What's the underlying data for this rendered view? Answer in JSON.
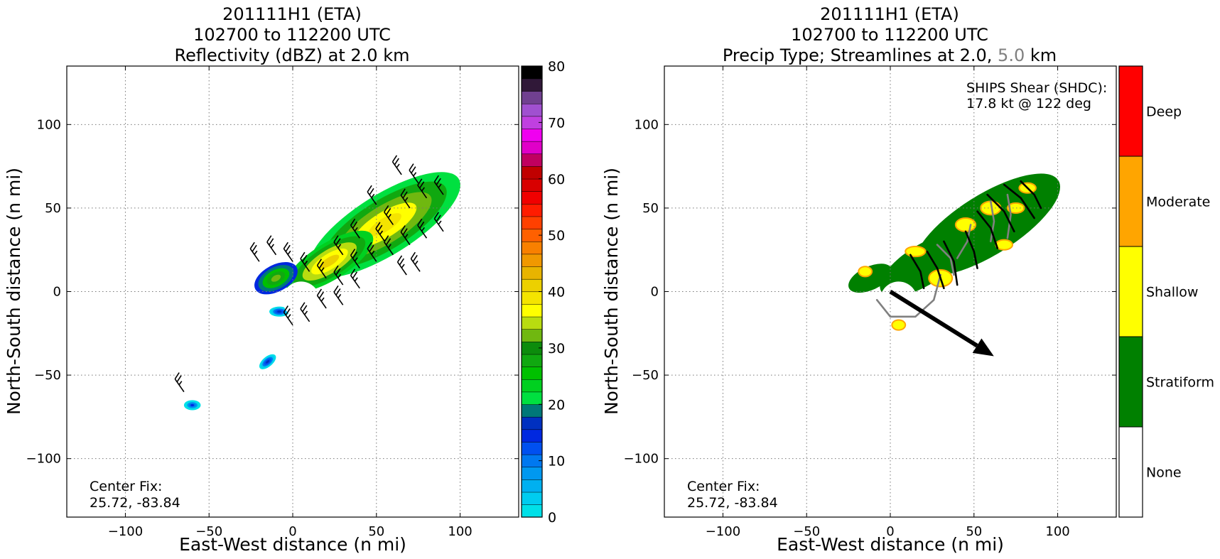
{
  "chart_data": [
    {
      "type": "heatmap",
      "title_lines": [
        "201111H1 (ETA)",
        "102700 to 112200 UTC",
        "Reflectivity (dBZ) at 2.0 km"
      ],
      "xlabel": "East-West distance (n mi)",
      "ylabel": "North-South distance (n mi)",
      "xlim": [
        -135,
        135
      ],
      "ylim": [
        -135,
        135
      ],
      "xticks": [
        -100,
        -50,
        0,
        50,
        100
      ],
      "yticks": [
        -100,
        -50,
        0,
        50,
        100
      ],
      "xtick_labels": [
        "−100",
        "−50",
        "0",
        "50",
        "100"
      ],
      "ytick_labels": [
        "−100",
        "−50",
        "0",
        "50",
        "100"
      ],
      "grid": true,
      "annotation_lines": [
        "Center Fix:",
        "25.72, -83.84"
      ],
      "colorbar": {
        "min": 0,
        "max": 80,
        "step": 2.5,
        "tick_values": [
          0,
          10,
          20,
          30,
          40,
          50,
          60,
          70,
          80
        ],
        "tick_labels": [
          "0",
          "10",
          "20",
          "30",
          "40",
          "50",
          "60",
          "70",
          "80"
        ],
        "colors": [
          "#00e0e8",
          "#00ccf0",
          "#00b0f0",
          "#0098f0",
          "#0078f0",
          "#0050f0",
          "#0028e0",
          "#0030c0",
          "#007878",
          "#00e040",
          "#00d020",
          "#00c000",
          "#10a810",
          "#0c8c0c",
          "#70b810",
          "#b8dc10",
          "#ffff00",
          "#f4e400",
          "#ecd000",
          "#e8b400",
          "#f09800",
          "#f88000",
          "#ff6000",
          "#ff4000",
          "#ff1c00",
          "#f00000",
          "#d80000",
          "#c00000",
          "#c00060",
          "#e000c8",
          "#f000f0",
          "#c040e0",
          "#a050d0",
          "#704090",
          "#301838",
          "#000000"
        ]
      },
      "echo_blobs": [
        {
          "cx": 55,
          "cy": 40,
          "rx": 52,
          "ry": 18,
          "angle_deg": 32,
          "value": 38
        },
        {
          "cx": 22,
          "cy": 18,
          "rx": 30,
          "ry": 11,
          "angle_deg": 32,
          "value": 40
        },
        {
          "cx": -10,
          "cy": 8,
          "rx": 14,
          "ry": 8,
          "angle_deg": 28,
          "value": 30
        },
        {
          "cx": -8,
          "cy": -12,
          "rx": 6,
          "ry": 3,
          "angle_deg": 0,
          "value": 12
        },
        {
          "cx": -15,
          "cy": -42,
          "rx": 6,
          "ry": 3,
          "angle_deg": 40,
          "value": 12
        },
        {
          "cx": -60,
          "cy": -68,
          "rx": 5,
          "ry": 3,
          "angle_deg": 0,
          "value": 10
        }
      ],
      "wind_barbs_at": [
        [
          -20,
          18
        ],
        [
          -10,
          22
        ],
        [
          0,
          18
        ],
        [
          10,
          12
        ],
        [
          20,
          8
        ],
        [
          30,
          4
        ],
        [
          40,
          2
        ],
        [
          20,
          -10
        ],
        [
          10,
          -18
        ],
        [
          0,
          -20
        ],
        [
          30,
          -8
        ],
        [
          40,
          14
        ],
        [
          50,
          18
        ],
        [
          60,
          22
        ],
        [
          70,
          28
        ],
        [
          80,
          32
        ],
        [
          90,
          36
        ],
        [
          60,
          40
        ],
        [
          70,
          50
        ],
        [
          80,
          56
        ],
        [
          90,
          58
        ],
        [
          65,
          70
        ],
        [
          75,
          65
        ],
        [
          50,
          52
        ],
        [
          40,
          32
        ],
        [
          30,
          22
        ],
        [
          55,
          30
        ],
        [
          68,
          10
        ],
        [
          76,
          12
        ],
        [
          -65,
          -60
        ]
      ]
    },
    {
      "type": "heatmap",
      "title_lines": [
        "201111H1 (ETA)",
        "102700 to 112200 UTC"
      ],
      "title_line3_parts": [
        "Precip Type; Streamlines at 2.0, ",
        "5.0",
        " km"
      ],
      "title_line3_colors": [
        "#000000",
        "#808080",
        "#000000"
      ],
      "xlabel": "East-West distance (n mi)",
      "ylabel": "North-South distance (n mi)",
      "xlim": [
        -135,
        135
      ],
      "ylim": [
        -135,
        135
      ],
      "xticks": [
        -100,
        -50,
        0,
        50,
        100
      ],
      "yticks": [
        -100,
        -50,
        0,
        50,
        100
      ],
      "xtick_labels": [
        "−100",
        "−50",
        "0",
        "50",
        "100"
      ],
      "ytick_labels": [
        "−100",
        "−50",
        "0",
        "50",
        "100"
      ],
      "grid": true,
      "shear_lines": [
        "SHIPS Shear (SHDC):",
        "17.8 kt @ 122 deg"
      ],
      "shear": {
        "magnitude_kt": 17.8,
        "direction_deg": 122
      },
      "annotation_lines": [
        "Center Fix:",
        "25.72, -83.84"
      ],
      "categories": [
        {
          "label": "None",
          "color": "#ffffff"
        },
        {
          "label": "Stratiform",
          "color": "#008000"
        },
        {
          "label": "Shallow",
          "color": "#ffff00"
        },
        {
          "label": "Moderate",
          "color": "#ffa500"
        },
        {
          "label": "Deep",
          "color": "#ff0000"
        }
      ],
      "precip_regions": [
        {
          "cx": 58,
          "cy": 40,
          "rx": 50,
          "ry": 18,
          "angle_deg": 32,
          "category": "Stratiform"
        },
        {
          "cx": 20,
          "cy": 16,
          "rx": 30,
          "ry": 12,
          "angle_deg": 32,
          "category": "Stratiform"
        },
        {
          "cx": -12,
          "cy": 8,
          "rx": 14,
          "ry": 7,
          "angle_deg": 25,
          "category": "Stratiform"
        },
        {
          "cx": 30,
          "cy": 8,
          "rx": 7,
          "ry": 5,
          "angle_deg": 0,
          "category": "Shallow"
        },
        {
          "cx": 45,
          "cy": 40,
          "rx": 6,
          "ry": 4,
          "angle_deg": 0,
          "category": "Shallow"
        },
        {
          "cx": 60,
          "cy": 50,
          "rx": 6,
          "ry": 4,
          "angle_deg": 0,
          "category": "Shallow"
        },
        {
          "cx": 75,
          "cy": 50,
          "rx": 5,
          "ry": 3,
          "angle_deg": 0,
          "category": "Shallow"
        },
        {
          "cx": 68,
          "cy": 28,
          "rx": 5,
          "ry": 3,
          "angle_deg": 0,
          "category": "Shallow"
        },
        {
          "cx": 82,
          "cy": 62,
          "rx": 5,
          "ry": 3,
          "angle_deg": 0,
          "category": "Shallow"
        },
        {
          "cx": 15,
          "cy": 24,
          "rx": 6,
          "ry": 3,
          "angle_deg": 0,
          "category": "Shallow"
        },
        {
          "cx": -15,
          "cy": 12,
          "rx": 4,
          "ry": 3,
          "angle_deg": 0,
          "category": "Shallow"
        },
        {
          "cx": 5,
          "cy": -20,
          "rx": 4,
          "ry": 3,
          "angle_deg": 0,
          "category": "Shallow"
        }
      ],
      "streamlines_2km": [
        [
          [
            22,
            24
          ],
          [
            28,
            14
          ],
          [
            32,
            2
          ]
        ],
        [
          [
            32,
            30
          ],
          [
            38,
            18
          ],
          [
            40,
            4
          ]
        ],
        [
          [
            45,
            36
          ],
          [
            50,
            24
          ],
          [
            52,
            14
          ]
        ],
        [
          [
            52,
            48
          ],
          [
            60,
            38
          ],
          [
            64,
            26
          ]
        ],
        [
          [
            58,
            58
          ],
          [
            68,
            48
          ],
          [
            74,
            36
          ]
        ],
        [
          [
            68,
            64
          ],
          [
            78,
            56
          ],
          [
            86,
            44
          ]
        ],
        [
          [
            78,
            66
          ],
          [
            86,
            58
          ],
          [
            90,
            50
          ]
        ],
        [
          [
            12,
            22
          ],
          [
            18,
            12
          ],
          [
            20,
            2
          ]
        ]
      ],
      "streamlines_5km": [
        [
          [
            -8,
            -5
          ],
          [
            0,
            -15
          ],
          [
            15,
            -15
          ],
          [
            26,
            -5
          ],
          [
            30,
            10
          ]
        ],
        [
          [
            40,
            20
          ],
          [
            46,
            30
          ],
          [
            48,
            40
          ]
        ],
        [
          [
            60,
            30
          ],
          [
            62,
            42
          ],
          [
            60,
            54
          ]
        ],
        [
          [
            70,
            32
          ],
          [
            72,
            46
          ],
          [
            70,
            58
          ]
        ],
        [
          [
            28,
            28
          ],
          [
            36,
            20
          ],
          [
            38,
            10
          ]
        ]
      ]
    }
  ]
}
